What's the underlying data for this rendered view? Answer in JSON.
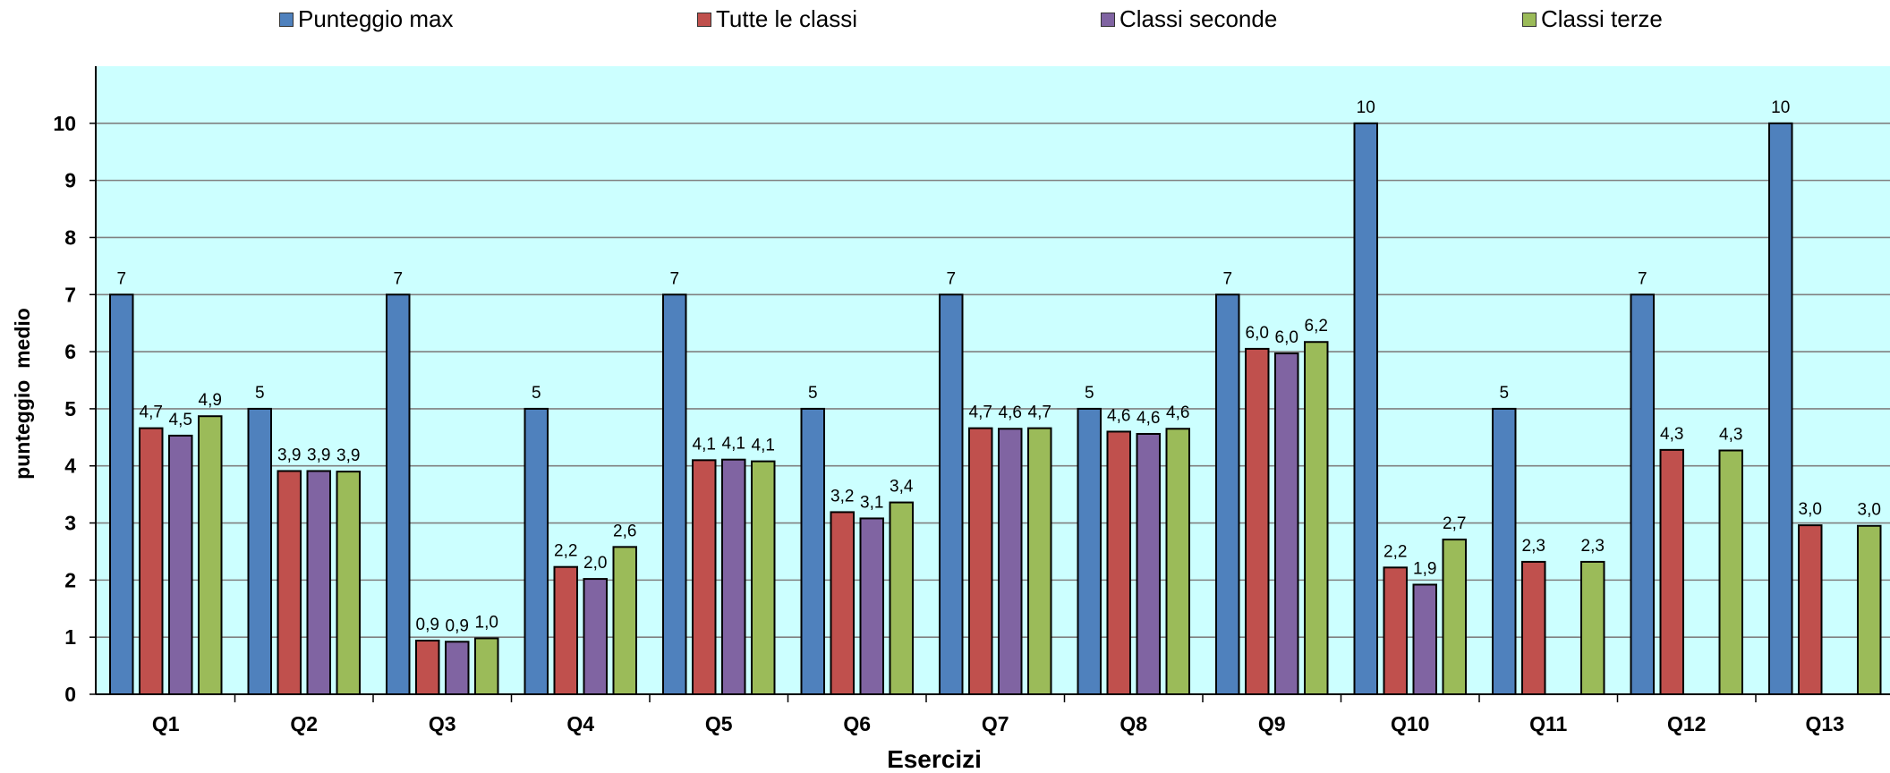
{
  "chart_data": {
    "type": "bar",
    "xlabel": "Esercizi",
    "ylabel": "punteggio  medio",
    "ylim": [
      0,
      11
    ],
    "yticks": [
      0,
      1,
      2,
      3,
      4,
      5,
      6,
      7,
      8,
      9,
      10
    ],
    "grid": true,
    "legend_position": "top",
    "categories": [
      "Q1",
      "Q2",
      "Q3",
      "Q4",
      "Q5",
      "Q6",
      "Q7",
      "Q8",
      "Q9",
      "Q10",
      "Q11",
      "Q12",
      "Q13"
    ],
    "series": [
      {
        "name": "Punteggio max",
        "color": "#4f81bd",
        "values": [
          7,
          5,
          7,
          5,
          7,
          5,
          7,
          5,
          7,
          10,
          5,
          7,
          10
        ],
        "labels": [
          "7",
          "5",
          "7",
          "5",
          "7",
          "5",
          "7",
          "5",
          "7",
          "10",
          "5",
          "7",
          "10"
        ]
      },
      {
        "name": "Tutte le classi",
        "color": "#c0504d",
        "values": [
          4.66,
          3.91,
          0.94,
          2.23,
          4.1,
          3.19,
          4.66,
          4.6,
          6.05,
          2.22,
          2.32,
          4.28,
          2.96
        ],
        "labels": [
          "4,7",
          "3,9",
          "0,9",
          "2,2",
          "4,1",
          "3,2",
          "4,7",
          "4,6",
          "6,0",
          "2,2",
          "2,3",
          "4,3",
          "3,0"
        ]
      },
      {
        "name": "Classi seconde",
        "color": "#8064a2",
        "values": [
          4.53,
          3.91,
          0.92,
          2.02,
          4.11,
          3.08,
          4.65,
          4.56,
          5.97,
          1.92,
          null,
          null,
          null
        ],
        "labels": [
          "4,5",
          "3,9",
          "0,9",
          "2,0",
          "4,1",
          "3,1",
          "4,6",
          "4,6",
          "6,0",
          "1,9",
          null,
          null,
          null
        ]
      },
      {
        "name": "Classi terze",
        "color": "#9bbb59",
        "values": [
          4.87,
          3.9,
          0.98,
          2.58,
          4.08,
          3.36,
          4.66,
          4.65,
          6.17,
          2.71,
          2.32,
          4.27,
          2.95
        ],
        "labels": [
          "4,9",
          "3,9",
          "1,0",
          "2,6",
          "4,1",
          "3,4",
          "4,7",
          "4,6",
          "6,2",
          "2,7",
          "2,3",
          "4,3",
          "3,0"
        ]
      }
    ]
  },
  "colors": {
    "plot_background": "#ccffff",
    "gridline": "#808080"
  }
}
